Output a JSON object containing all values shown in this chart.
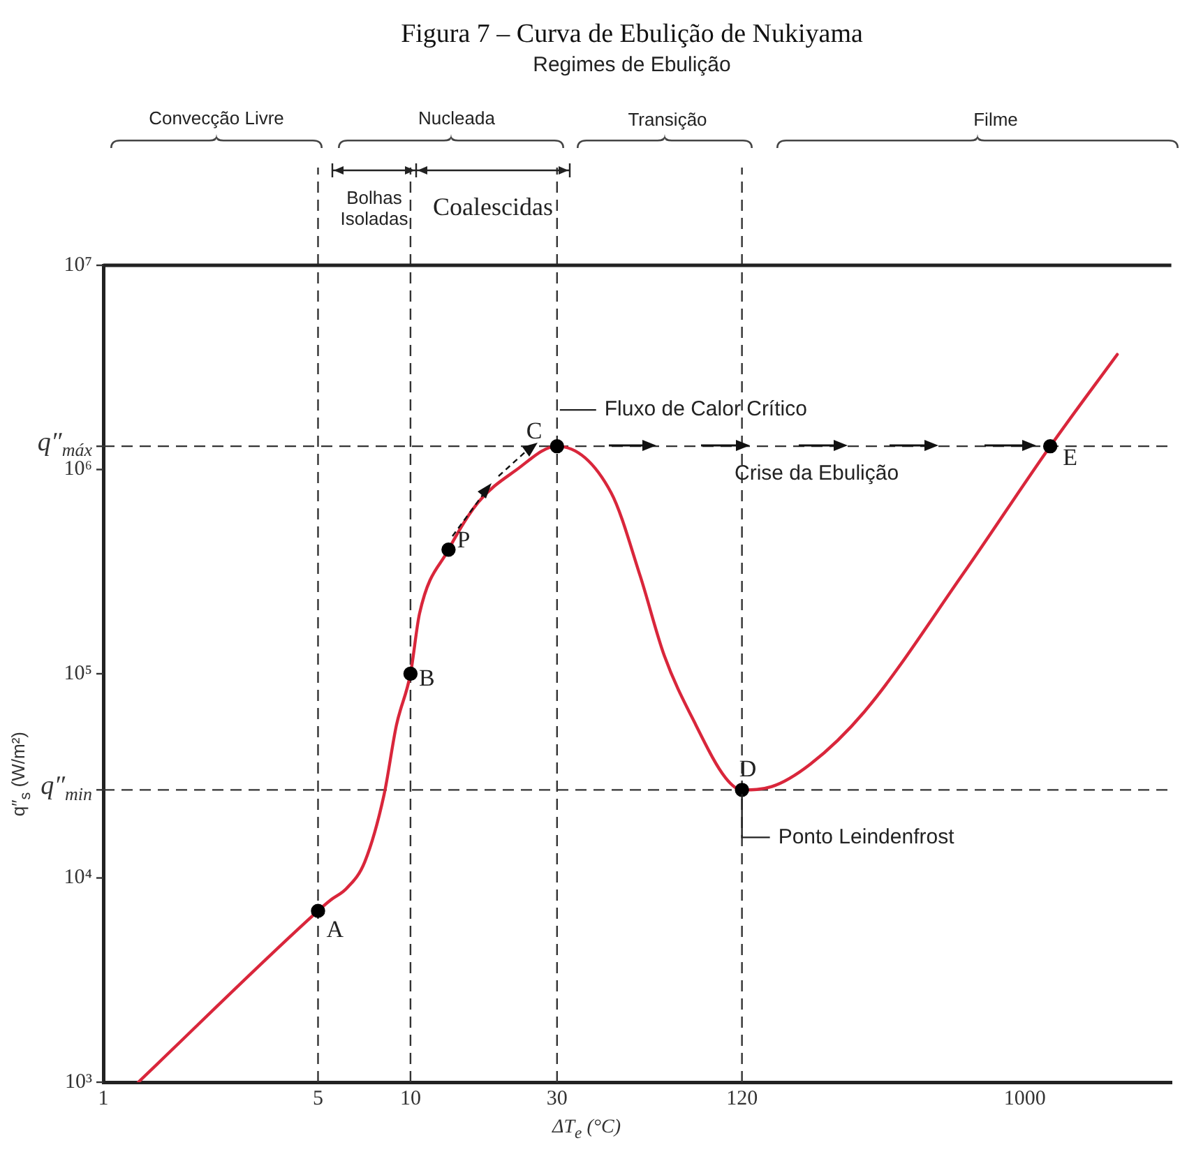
{
  "chart_data": {
    "type": "line",
    "title": "Figura 7 – Curva de Ebulição de Nukiyama",
    "subtitle": "Regimes de Ebulição",
    "xlabel": "ΔT$_{e}$ (°C)",
    "ylabel": "q″$_{s}$ (W/m²)",
    "log": "xy",
    "grid": false,
    "legend": false,
    "xlim": [
      1,
      3000
    ],
    "xticks": [
      1,
      5,
      10,
      30,
      120,
      1000
    ],
    "ylim": [
      1000,
      10000000
    ],
    "yticks": [
      {
        "value": 1000,
        "label": "10³"
      },
      {
        "value": 10000,
        "label": "10⁴"
      },
      {
        "value": 27000,
        "label": "q″$_{min}$"
      },
      {
        "value": 100000,
        "label": "10⁵"
      },
      {
        "value": 1000000,
        "label": "10⁶"
      },
      {
        "value": 1300000,
        "label": "q″$_{máx}$"
      },
      {
        "value": 10000000,
        "label": "10⁷"
      }
    ],
    "series": [
      {
        "color": "#d9263b",
        "marker": "none",
        "line_style": "solid",
        "x": [
          1.3,
          5,
          5.5,
          6.2,
          7.1,
          8.2,
          9,
          10,
          10.7,
          13.3,
          16.6,
          22,
          30,
          45,
          56,
          67,
          85,
          106,
          120,
          150,
          200,
          300,
          631,
          1210,
          2000
        ],
        "values": [
          1000,
          6900,
          7800,
          8900,
          12000,
          25500,
          56000,
          100000,
          197000,
          405000,
          690000,
          990000,
          1300000,
          770000,
          300000,
          123000,
          56000,
          31000,
          27000,
          28000,
          36000,
          65000,
          310000,
          1300000,
          3660000
        ]
      },
      {
        "type": "scatter",
        "color": "#000000",
        "marker": "circle",
        "x": [
          5,
          10,
          13.3,
          30,
          120,
          1210
        ],
        "values": [
          6900,
          100000,
          405000,
          1300000,
          27000,
          1300000
        ]
      }
    ],
    "ref_lines": [
      {
        "axis": "x",
        "value": 5,
        "line_style": "dashed"
      },
      {
        "axis": "x",
        "value": 10,
        "line_style": "dashed"
      },
      {
        "axis": "x",
        "value": 30,
        "line_style": "dashed"
      },
      {
        "axis": "x",
        "value": 120,
        "line_style": "dashed"
      },
      {
        "axis": "y",
        "value": 1300000,
        "line_style": "dashed"
      },
      {
        "axis": "y",
        "value": 27000,
        "line_style": "dashed"
      }
    ],
    "annotations": [
      "Convecção Livre",
      "Nucleada",
      "Transição",
      "Filme",
      "Bolhas Isoladas",
      "Coalescidas",
      {
        "text": "A",
        "x": 5,
        "y": 6900
      },
      {
        "text": "B",
        "x": 10,
        "y": 100000
      },
      {
        "text": "P",
        "x": 13.3,
        "y": 405000
      },
      {
        "text": "C",
        "x": 30,
        "y": 1300000
      },
      {
        "text": "D",
        "x": 120,
        "y": 27000
      },
      {
        "text": "E",
        "x": 1210,
        "y": 1300000
      },
      {
        "text": "Fluxo de Calor Crítico",
        "x": 30,
        "y": 1300000
      },
      {
        "text": "Crise da Ebulição",
        "x": 210,
        "y": 1300000
      },
      {
        "text": "Ponto Leindenfrost",
        "x": 120,
        "y": 27000
      }
    ]
  }
}
